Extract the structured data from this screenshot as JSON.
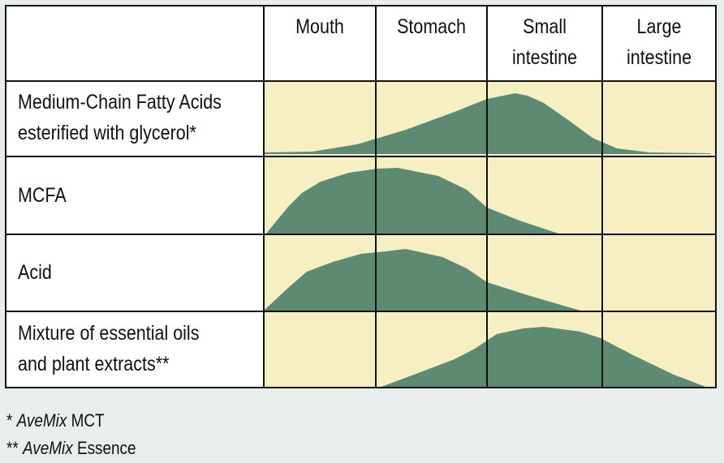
{
  "columns": [
    "Mouth",
    "Stomach",
    "Small\nintestine",
    "Large\nintestine"
  ],
  "rows": [
    {
      "label": "Medium-Chain Fatty Acids\nesterified with glycerol*"
    },
    {
      "label": "MCFA"
    },
    {
      "label": "Acid"
    },
    {
      "label": "Mixture of essential oils\nand plant extracts**"
    }
  ],
  "footnotes": [
    {
      "marker": "*",
      "brand": "AveMix",
      "product": "MCT"
    },
    {
      "marker": "**",
      "brand": "AveMix",
      "product": "Essence"
    }
  ],
  "colors": {
    "page_bg": "#e8eeeb",
    "cell_bg": "#f6efc3",
    "header_bg": "#ffffff",
    "curve_fill": "#5e8a73",
    "grid_line": "#111111"
  }
}
